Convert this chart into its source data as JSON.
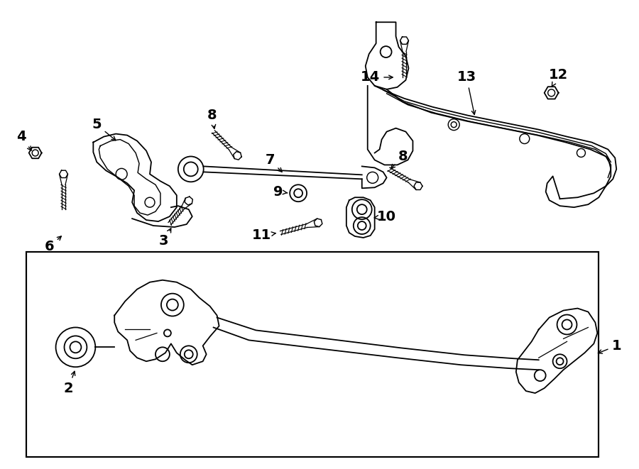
{
  "bg_color": "#ffffff",
  "line_color": "#000000",
  "lw": 1.3,
  "fig_width": 9.0,
  "fig_height": 6.61,
  "dpi": 100
}
